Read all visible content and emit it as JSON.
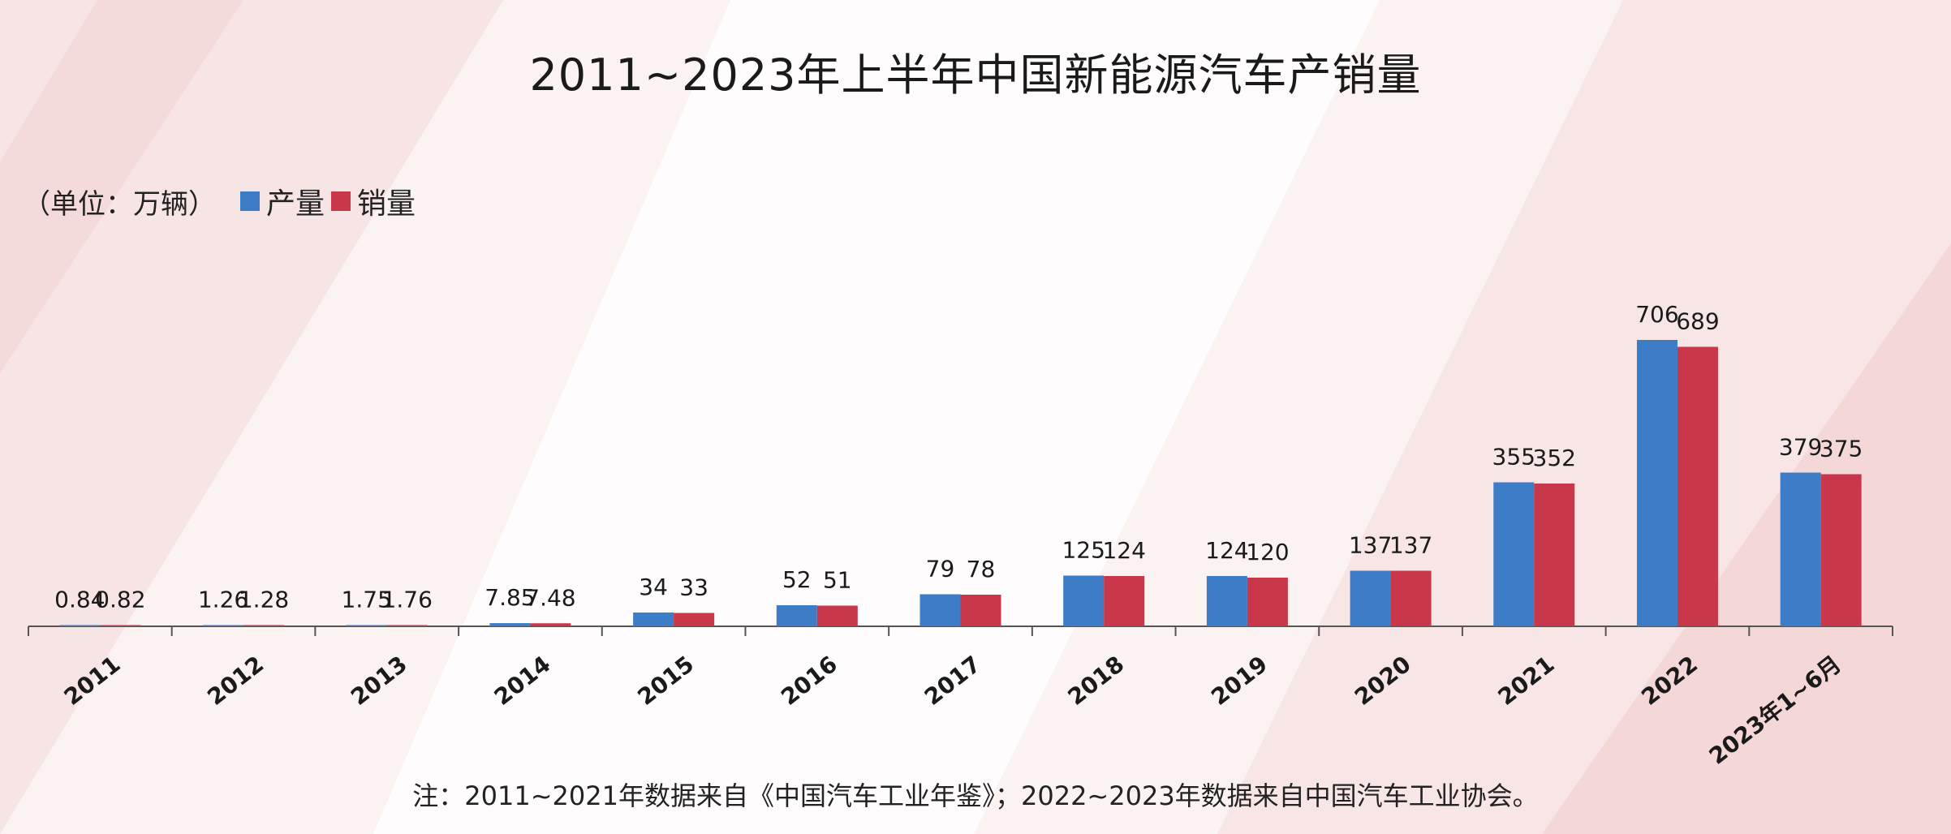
{
  "title": "2011~2023年上半年中国新能源汽车产销量",
  "unit_label": "（单位：万辆）",
  "note": "注：2011~2021年数据来自《中国汽车工业年鉴》；2022~2023年数据来自中国汽车工业协会。",
  "colors": {
    "production": "#3d7cc6",
    "sales": "#c9374a",
    "axis": "#555555",
    "label": "#1a1a1a"
  },
  "chart_data": {
    "type": "bar",
    "categories": [
      "2011",
      "2012",
      "2013",
      "2014",
      "2015",
      "2016",
      "2017",
      "2018",
      "2019",
      "2020",
      "2021",
      "2022",
      "2023年1~6月"
    ],
    "series": [
      {
        "name": "产量",
        "values": [
          0.84,
          1.26,
          1.75,
          7.85,
          34,
          52,
          79,
          125,
          124,
          137,
          355,
          706,
          379
        ],
        "labels": [
          "0.84",
          "1.26",
          "1.75",
          "7.85",
          "34",
          "52",
          "79",
          "125",
          "124",
          "137",
          "355",
          "706",
          "379"
        ]
      },
      {
        "name": "销量",
        "values": [
          0.82,
          1.28,
          1.76,
          7.48,
          33,
          51,
          78,
          124,
          120,
          137,
          352,
          689,
          375
        ],
        "labels": [
          "0.82",
          "1.28",
          "1.76",
          "7.48",
          "33",
          "51",
          "78",
          "124",
          "120",
          "137",
          "352",
          "689",
          "375"
        ]
      }
    ],
    "title": "2011~2023年上半年中国新能源汽车产销量",
    "xlabel": "",
    "ylabel": "",
    "ylim": [
      0,
      800
    ],
    "grid": false,
    "legend": "top-left"
  }
}
